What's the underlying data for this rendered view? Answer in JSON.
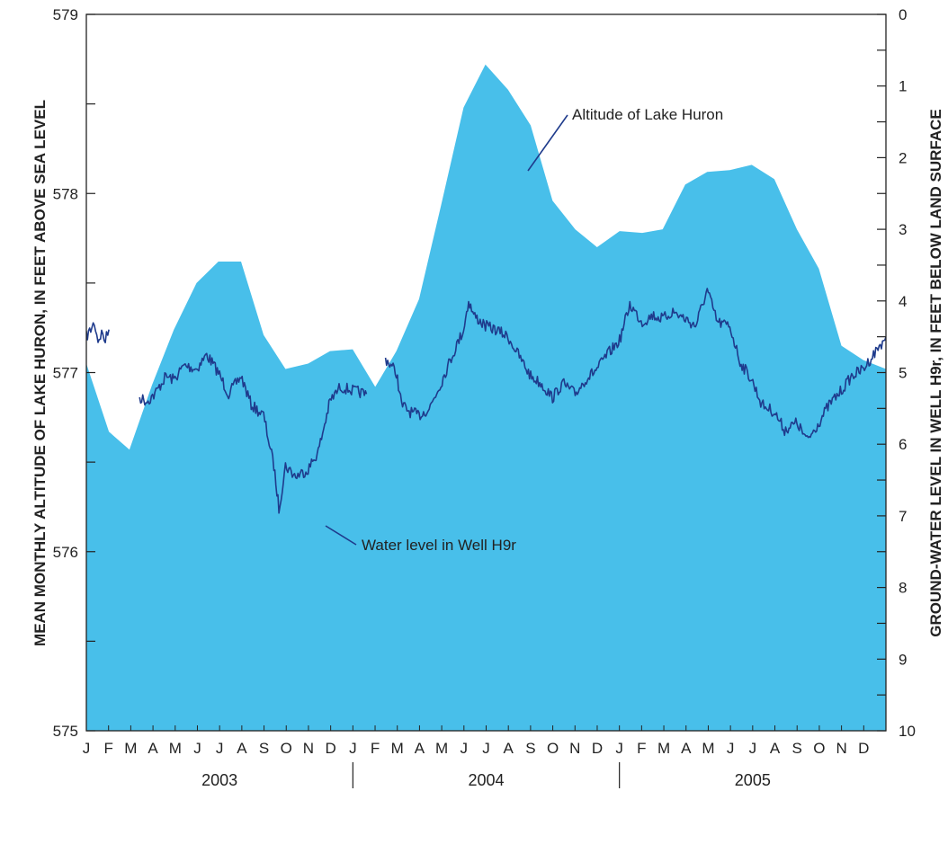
{
  "chart_data": {
    "type": "area",
    "left_axis": {
      "label": "MEAN MONTHLY ALTITUDE OF LAKE HURON, IN FEET ABOVE SEA LEVEL",
      "range": [
        575,
        579
      ],
      "ticks": [
        "575",
        "576",
        "577",
        "578",
        "579"
      ],
      "minor_step": 0.5
    },
    "right_axis": {
      "label": "GROUND-WATER LEVEL IN WELL H9r, IN FEET BELOW LAND SURFACE",
      "range": [
        0,
        10
      ],
      "inverted": true,
      "ticks": [
        "0",
        "1",
        "2",
        "3",
        "4",
        "5",
        "6",
        "7",
        "8",
        "9",
        "10"
      ],
      "minor_step": 0.5
    },
    "x_axis": {
      "months": [
        "J",
        "F",
        "M",
        "A",
        "M",
        "J",
        "J",
        "A",
        "S",
        "O",
        "N",
        "D",
        "J",
        "F",
        "M",
        "A",
        "M",
        "J",
        "J",
        "A",
        "S",
        "O",
        "N",
        "D",
        "J",
        "F",
        "M",
        "A",
        "M",
        "J",
        "J",
        "A",
        "S",
        "O",
        "N",
        "D"
      ],
      "years": [
        "2003",
        "2004",
        "2005"
      ],
      "range": [
        "2003-01-01",
        "2006-01-01"
      ]
    },
    "series": [
      {
        "name": "Altitude of Lake Huron",
        "axis": "left",
        "color": "#48bfea",
        "points": [
          [
            "2003-01-01",
            577.05
          ],
          [
            "2003-02-01",
            576.67
          ],
          [
            "2003-03-01",
            576.57
          ],
          [
            "2003-04-01",
            576.93
          ],
          [
            "2003-05-01",
            577.24
          ],
          [
            "2003-06-01",
            577.5
          ],
          [
            "2003-07-01",
            577.62
          ],
          [
            "2003-08-01",
            577.62
          ],
          [
            "2003-09-01",
            577.21
          ],
          [
            "2003-10-01",
            577.02
          ],
          [
            "2003-11-01",
            577.05
          ],
          [
            "2003-12-01",
            577.12
          ],
          [
            "2004-01-01",
            577.13
          ],
          [
            "2004-02-01",
            576.92
          ],
          [
            "2004-03-01",
            577.12
          ],
          [
            "2004-04-01",
            577.41
          ],
          [
            "2004-05-01",
            577.93
          ],
          [
            "2004-06-01",
            578.48
          ],
          [
            "2004-07-01",
            578.72
          ],
          [
            "2004-08-01",
            578.58
          ],
          [
            "2004-09-01",
            578.38
          ],
          [
            "2004-10-01",
            577.96
          ],
          [
            "2004-11-01",
            577.8
          ],
          [
            "2004-12-01",
            577.7
          ],
          [
            "2005-01-01",
            577.79
          ],
          [
            "2005-02-01",
            577.78
          ],
          [
            "2005-03-01",
            577.8
          ],
          [
            "2005-04-01",
            578.05
          ],
          [
            "2005-05-01",
            578.12
          ],
          [
            "2005-06-01",
            578.13
          ],
          [
            "2005-07-01",
            578.16
          ],
          [
            "2005-08-01",
            578.08
          ],
          [
            "2005-09-01",
            577.8
          ],
          [
            "2005-10-01",
            577.58
          ],
          [
            "2005-11-01",
            577.15
          ],
          [
            "2005-12-01",
            577.07
          ],
          [
            "2006-01-01",
            577.02
          ]
        ]
      },
      {
        "name": "Water level in Well H9r",
        "axis": "right",
        "color": "#1f3b8c",
        "segments": [
          [
            [
              "2003-01-01",
              4.5
            ],
            [
              "2003-01-07",
              4.4
            ],
            [
              "2003-01-12",
              4.3
            ],
            [
              "2003-01-17",
              4.55
            ],
            [
              "2003-01-22",
              4.45
            ],
            [
              "2003-01-27",
              4.55
            ],
            [
              "2003-02-01",
              4.4
            ]
          ],
          [
            [
              "2003-03-15",
              5.35
            ],
            [
              "2003-03-25",
              5.4
            ],
            [
              "2003-04-05",
              5.3
            ],
            [
              "2003-04-20",
              5.05
            ],
            [
              "2003-05-01",
              5.1
            ],
            [
              "2003-05-15",
              4.9
            ],
            [
              "2003-06-01",
              4.95
            ],
            [
              "2003-06-15",
              4.75
            ],
            [
              "2003-07-01",
              5.0
            ],
            [
              "2003-07-15",
              5.3
            ],
            [
              "2003-08-01",
              5.05
            ],
            [
              "2003-08-15",
              5.45
            ],
            [
              "2003-09-01",
              5.6
            ],
            [
              "2003-09-15",
              6.3
            ],
            [
              "2003-09-22",
              6.9
            ],
            [
              "2003-10-01",
              6.3
            ],
            [
              "2003-10-15",
              6.45
            ],
            [
              "2003-11-01",
              6.35
            ],
            [
              "2003-11-15",
              6.1
            ],
            [
              "2003-12-01",
              5.4
            ],
            [
              "2003-12-15",
              5.2
            ],
            [
              "2004-01-01",
              5.25
            ],
            [
              "2004-01-20",
              5.3
            ]
          ],
          [
            [
              "2004-02-15",
              4.8
            ],
            [
              "2004-03-01",
              5.0
            ],
            [
              "2004-03-08",
              5.45
            ],
            [
              "2004-03-20",
              5.55
            ],
            [
              "2004-04-01",
              5.6
            ],
            [
              "2004-04-15",
              5.5
            ],
            [
              "2004-05-01",
              5.15
            ],
            [
              "2004-05-15",
              4.8
            ],
            [
              "2004-06-01",
              4.4
            ],
            [
              "2004-06-08",
              4.0
            ],
            [
              "2004-06-15",
              4.2
            ],
            [
              "2004-07-01",
              4.35
            ],
            [
              "2004-07-15",
              4.4
            ],
            [
              "2004-08-01",
              4.5
            ],
            [
              "2004-08-15",
              4.75
            ],
            [
              "2004-09-01",
              5.05
            ],
            [
              "2004-09-15",
              5.15
            ],
            [
              "2004-10-01",
              5.35
            ],
            [
              "2004-10-15",
              5.15
            ],
            [
              "2004-11-01",
              5.3
            ],
            [
              "2004-11-15",
              5.1
            ],
            [
              "2004-12-01",
              4.95
            ],
            [
              "2004-12-15",
              4.75
            ],
            [
              "2005-01-01",
              4.55
            ],
            [
              "2005-01-15",
              4.05
            ],
            [
              "2005-02-01",
              4.3
            ],
            [
              "2005-02-15",
              4.2
            ],
            [
              "2005-03-01",
              4.25
            ],
            [
              "2005-03-15",
              4.15
            ],
            [
              "2005-04-01",
              4.25
            ],
            [
              "2005-04-15",
              4.35
            ],
            [
              "2005-05-01",
              3.85
            ],
            [
              "2005-05-15",
              4.3
            ],
            [
              "2005-06-01",
              4.35
            ],
            [
              "2005-06-15",
              4.85
            ],
            [
              "2005-07-01",
              5.1
            ],
            [
              "2005-07-15",
              5.45
            ],
            [
              "2005-08-01",
              5.55
            ],
            [
              "2005-08-15",
              5.8
            ],
            [
              "2005-09-01",
              5.7
            ],
            [
              "2005-09-15",
              5.95
            ],
            [
              "2005-10-01",
              5.7
            ],
            [
              "2005-10-15",
              5.45
            ],
            [
              "2005-11-01",
              5.25
            ],
            [
              "2005-11-15",
              5.05
            ],
            [
              "2005-12-01",
              4.95
            ],
            [
              "2005-12-15",
              4.75
            ],
            [
              "2006-01-01",
              4.5
            ]
          ]
        ]
      }
    ],
    "annotations": [
      {
        "text": "Altitude of Lake Huron",
        "points_to": "Altitude of Lake Huron"
      },
      {
        "text": "Water level in Well H9r",
        "points_to": "Water level in Well H9r"
      }
    ],
    "grid": false,
    "legend": "none"
  }
}
